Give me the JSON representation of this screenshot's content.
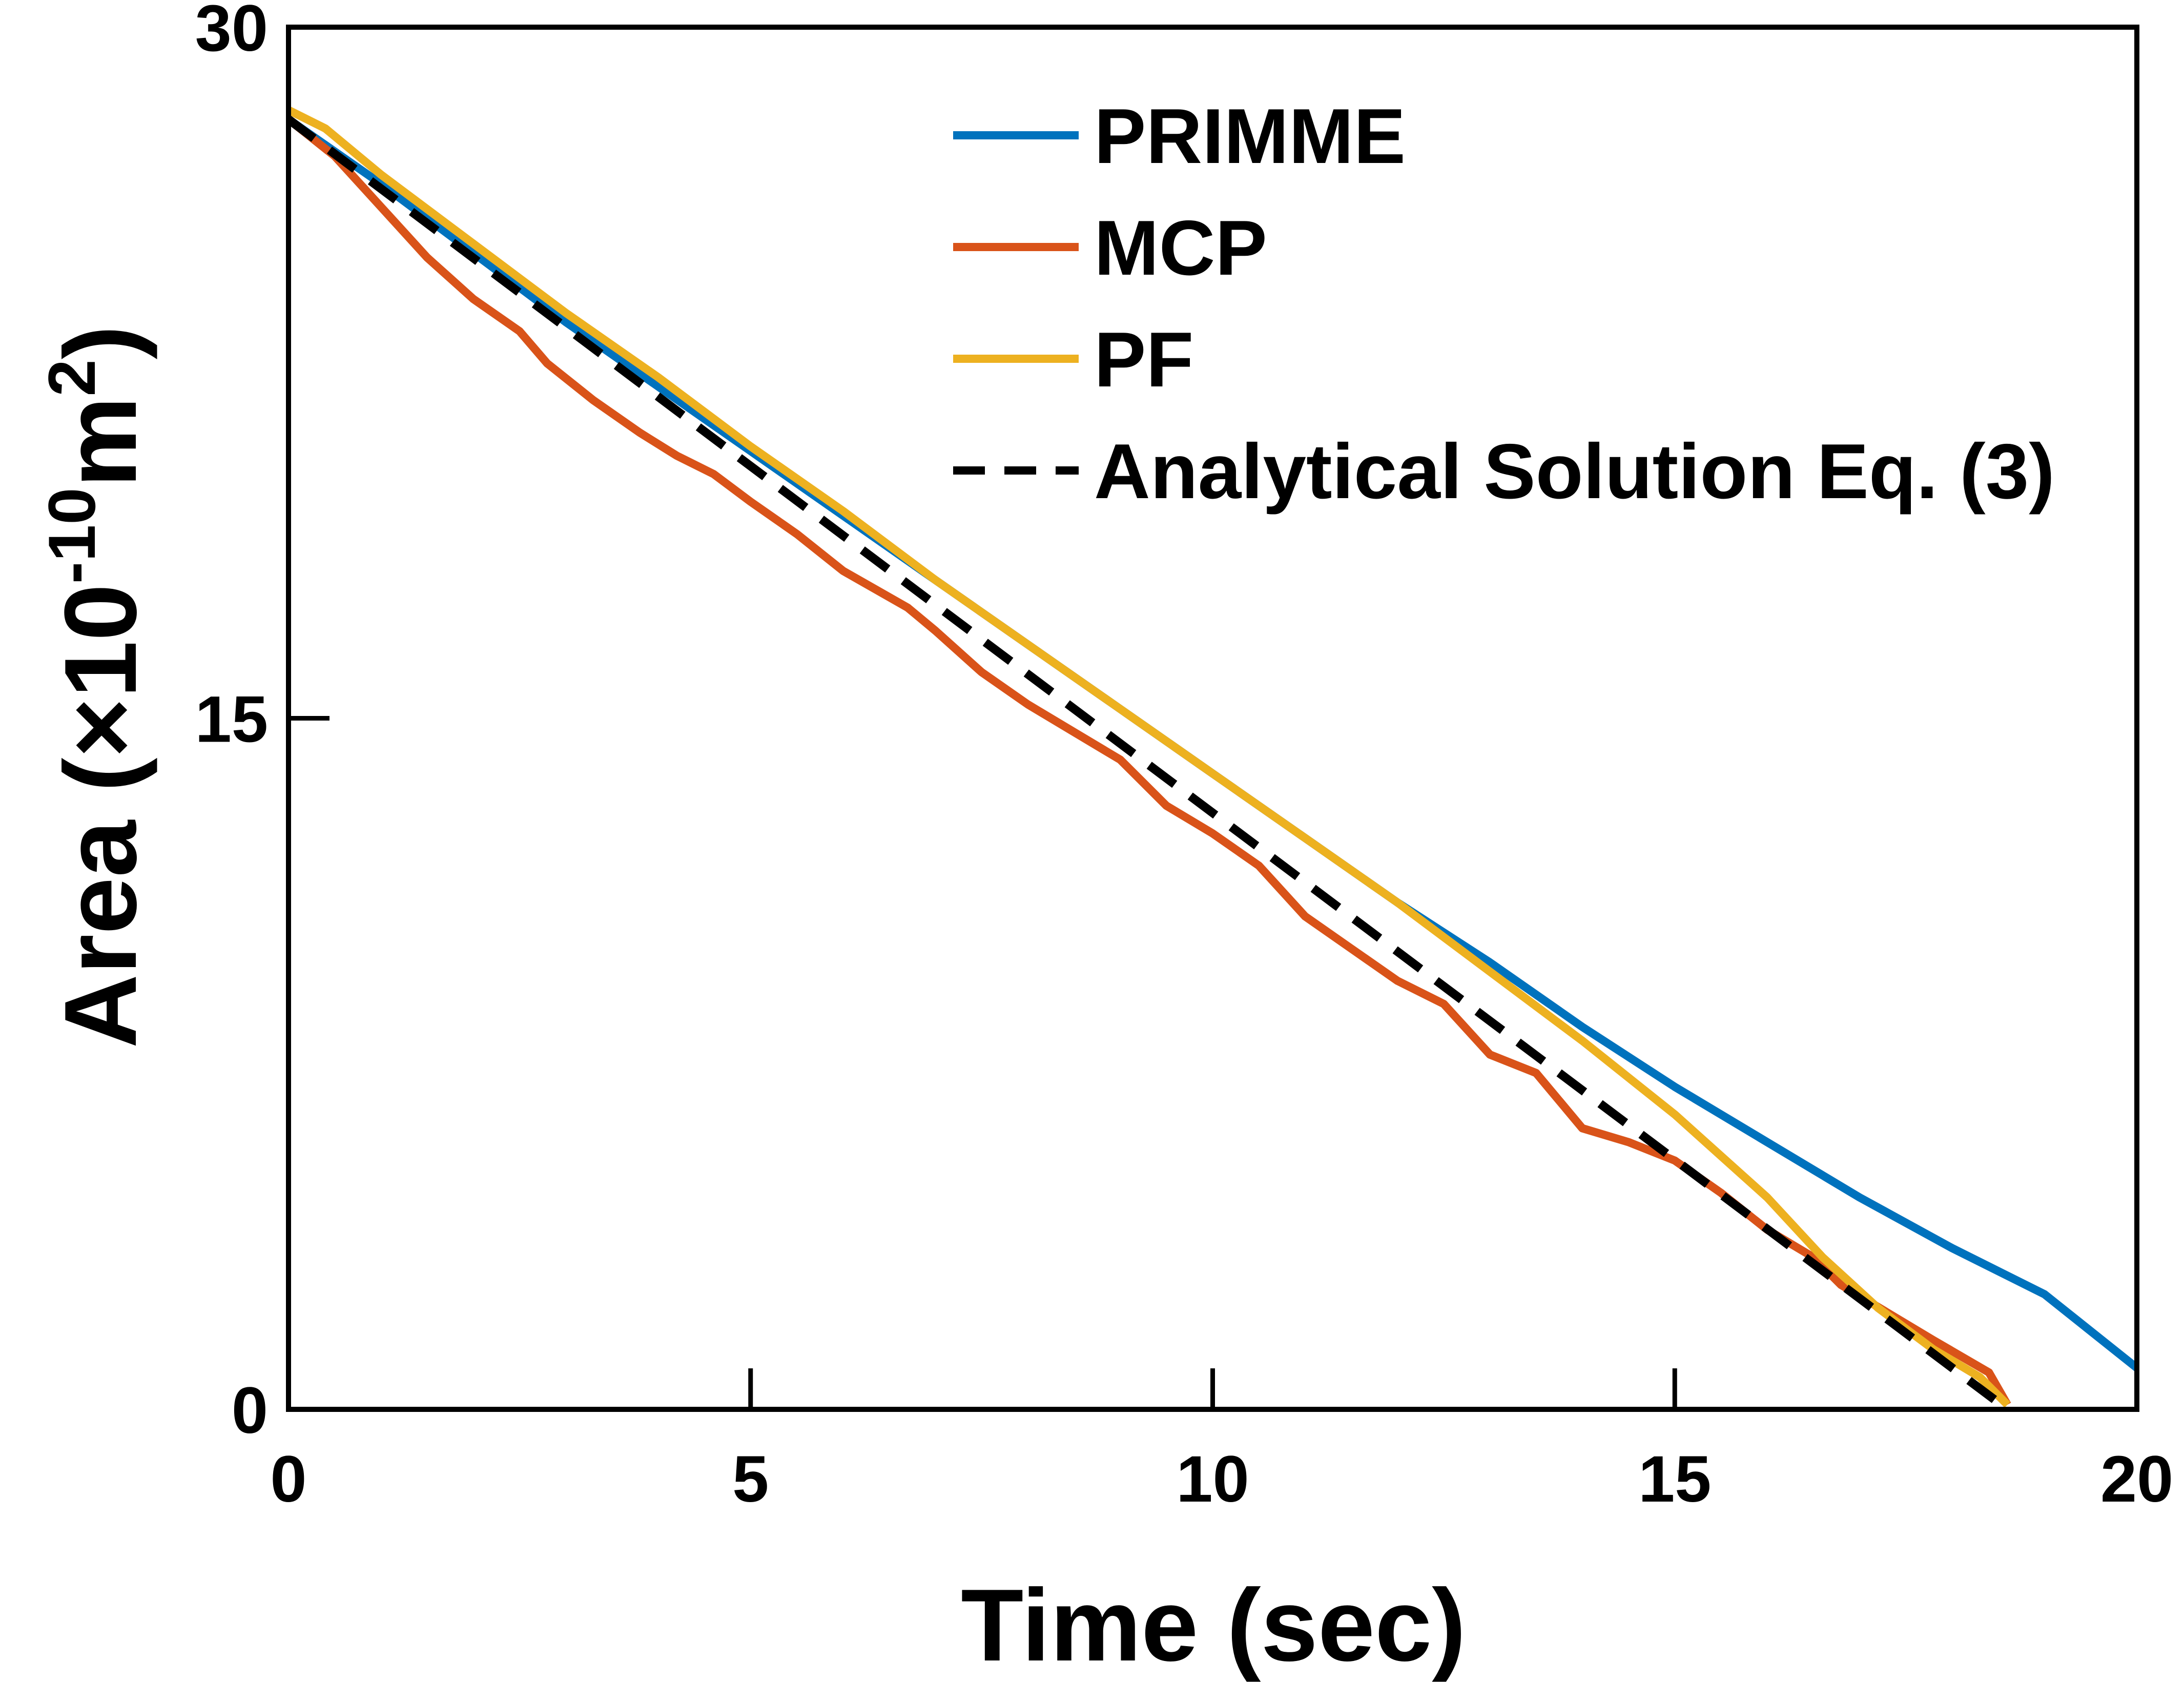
{
  "chart_data": {
    "type": "line",
    "xlabel": "Time (sec)",
    "ylabel": {
      "prefix": "Area (×10",
      "exp1": "-10",
      "mid": "m",
      "exp2": "2",
      "suffix": ")"
    },
    "xlim": [
      0,
      20
    ],
    "ylim": [
      0,
      30
    ],
    "xticks": [
      0,
      5,
      10,
      15,
      20
    ],
    "yticks": [
      0,
      15,
      30
    ],
    "xtick_labels": [
      "0",
      "5",
      "10",
      "15",
      "20"
    ],
    "ytick_labels": [
      "0",
      "15",
      "30"
    ],
    "grid": false,
    "legend_position": "top-right",
    "series": [
      {
        "name": "PRIMME",
        "color": "#0072BD",
        "style": "solid",
        "x": [
          0,
          1,
          2,
          3,
          4,
          5,
          6,
          7,
          8,
          9,
          10,
          11,
          12,
          13,
          14,
          15,
          16,
          17,
          18,
          19,
          20
        ],
        "y": [
          28.0,
          26.6,
          25.1,
          23.6,
          22.2,
          20.8,
          19.4,
          18.0,
          16.6,
          15.2,
          13.8,
          12.4,
          11.0,
          9.7,
          8.3,
          7.0,
          5.8,
          4.6,
          3.5,
          2.5,
          0.9
        ]
      },
      {
        "name": "MCP",
        "color": "#D95319",
        "style": "solid",
        "x": [
          0,
          0.5,
          1,
          1.5,
          2,
          2.5,
          2.8,
          3.3,
          3.8,
          4.2,
          4.6,
          5,
          5.5,
          6,
          6.7,
          7,
          7.5,
          8,
          8.5,
          9,
          9.5,
          10,
          10.5,
          11,
          11.5,
          12,
          12.5,
          13,
          13.5,
          14,
          14.5,
          15,
          15.5,
          16,
          16.5,
          16.8,
          17.3,
          17.8,
          18.4,
          18.6
        ],
        "y": [
          28.0,
          27.2,
          26.1,
          25.0,
          24.1,
          23.4,
          22.7,
          21.9,
          21.2,
          20.7,
          20.3,
          19.7,
          19.0,
          18.2,
          17.4,
          16.9,
          16.0,
          15.3,
          14.7,
          14.1,
          13.1,
          12.5,
          11.8,
          10.7,
          10.0,
          9.3,
          8.8,
          7.7,
          7.3,
          6.1,
          5.8,
          5.4,
          4.7,
          3.9,
          3.3,
          2.7,
          2.1,
          1.5,
          0.8,
          0.1
        ]
      },
      {
        "name": "PF",
        "color": "#EDB120",
        "style": "solid",
        "x": [
          0,
          0.4,
          1,
          2,
          3,
          4,
          5,
          6,
          7,
          8,
          9,
          10,
          11,
          12,
          13,
          14,
          15,
          16,
          16.6,
          17.2,
          17.8,
          18.3,
          18.6
        ],
        "y": [
          28.2,
          27.8,
          26.8,
          25.3,
          23.8,
          22.4,
          20.9,
          19.5,
          18.0,
          16.6,
          15.2,
          13.8,
          12.4,
          11.0,
          9.5,
          8.0,
          6.4,
          4.6,
          3.3,
          2.2,
          1.3,
          0.7,
          0.1
        ]
      },
      {
        "name": "Analytical Solution Eq. (3)",
        "color": "#000000",
        "style": "dashed",
        "x": [
          0,
          18.6
        ],
        "y": [
          28.0,
          0.0
        ]
      }
    ]
  }
}
